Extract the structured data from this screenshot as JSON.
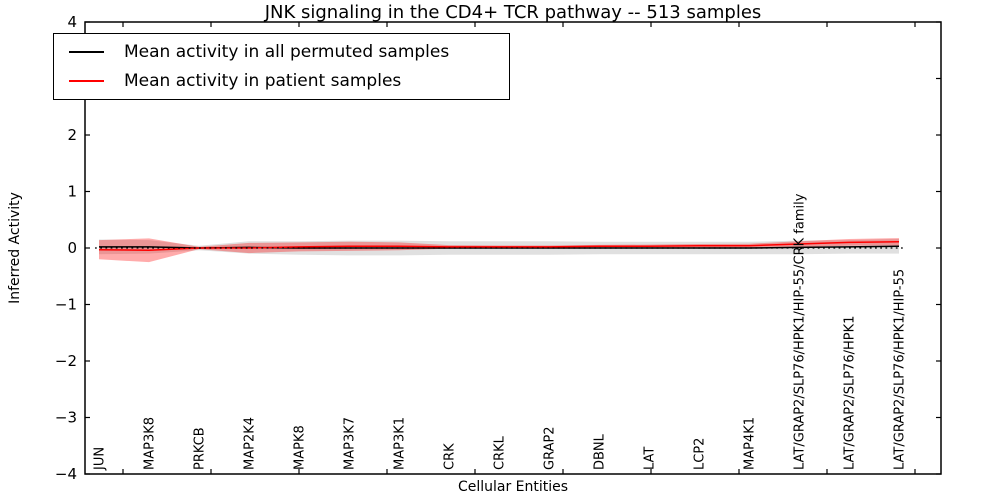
{
  "title": "JNK signaling in the CD4+ TCR pathway -- 513 samples",
  "legend": {
    "items": [
      {
        "label": "Mean activity in all permuted samples",
        "color": "#000000"
      },
      {
        "label": "Mean activity in patient samples",
        "color": "#ff0000"
      }
    ]
  },
  "chart_data": {
    "type": "line",
    "title": "JNK signaling in the CD4+ TCR pathway -- 513 samples",
    "xlabel": "Cellular Entities",
    "ylabel": "Inferred Activity",
    "ylim": [
      -4,
      4
    ],
    "yticks": [
      4,
      3,
      2,
      1,
      0,
      -1,
      -2,
      -3,
      -4
    ],
    "ytick_labels": [
      "4",
      "3",
      "2",
      "1",
      "0",
      "−1",
      "−2",
      "−3",
      "−4"
    ],
    "grid": false,
    "legend_position": "upper left",
    "zero_line": {
      "y": 0,
      "style": "dotted",
      "color": "#000000"
    },
    "categories": [
      "JUN",
      "MAP3K8",
      "PRKCB",
      "MAP2K4",
      "MAPK8",
      "MAP3K7",
      "MAP3K1",
      "CRK",
      "CRKL",
      "GRAP2",
      "DBNL",
      "LAT",
      "LCP2",
      "MAP4K1",
      "LAT/GRAP2/SLP76/HPK1/HIP-55/CRK family",
      "LAT/GRAP2/SLP76/HPK1",
      "LAT/GRAP2/SLP76/HPK1/HIP-55"
    ],
    "series": [
      {
        "name": "Mean activity in all permuted samples",
        "color": "#000000",
        "band_color": "#000000",
        "band_opacity": 0.12,
        "mean": [
          0.02,
          0.02,
          0.0,
          0.01,
          0.0,
          0.0,
          0.0,
          0.0,
          0.0,
          0.0,
          0.0,
          0.0,
          0.0,
          0.0,
          0.01,
          0.02,
          0.03
        ],
        "std": [
          0.13,
          0.12,
          0.04,
          0.11,
          0.12,
          0.13,
          0.13,
          0.12,
          0.12,
          0.12,
          0.11,
          0.11,
          0.11,
          0.11,
          0.12,
          0.12,
          0.13
        ]
      },
      {
        "name": "Mean activity in patient samples",
        "color": "#ff0000",
        "band_color": "#ff0000",
        "band_opacity": 0.33,
        "mean": [
          -0.03,
          -0.04,
          0.0,
          0.0,
          0.02,
          0.03,
          0.03,
          0.02,
          0.02,
          0.02,
          0.03,
          0.03,
          0.04,
          0.04,
          0.07,
          0.1,
          0.11
        ],
        "std": [
          0.17,
          0.21,
          0.02,
          0.09,
          0.08,
          0.08,
          0.07,
          0.03,
          0.025,
          0.025,
          0.025,
          0.03,
          0.03,
          0.035,
          0.05,
          0.06,
          0.065
        ]
      }
    ]
  }
}
